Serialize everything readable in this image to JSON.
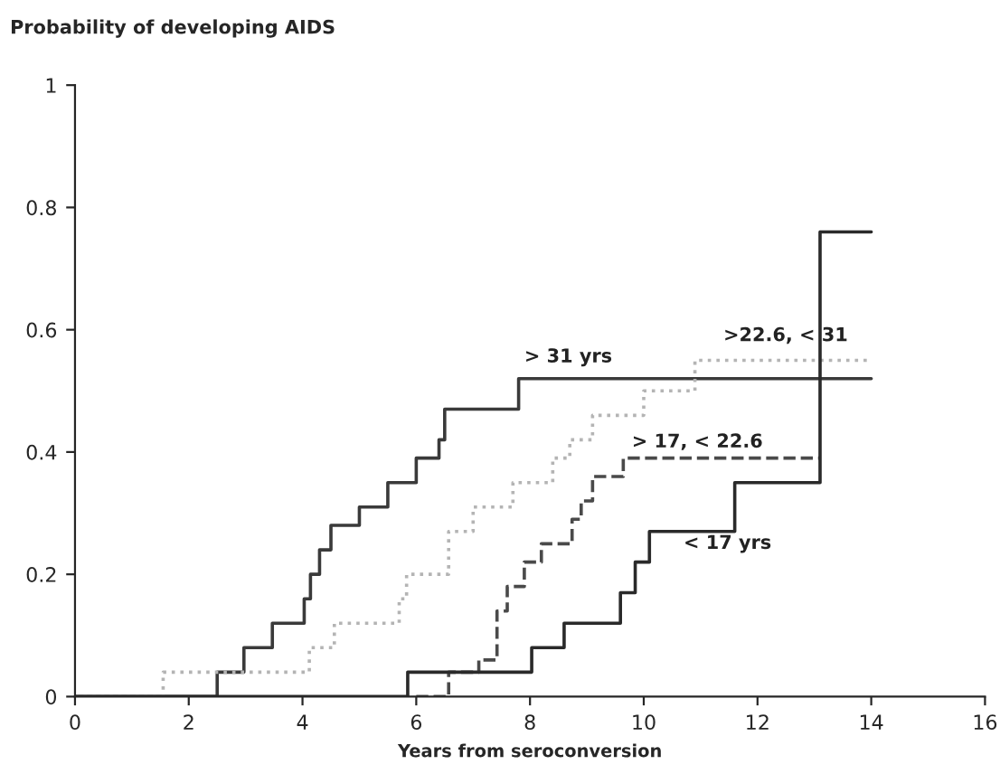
{
  "chart_data": {
    "type": "step",
    "title": "Probability of developing AIDS",
    "xlabel": "Years from seroconversion",
    "xlim": [
      0,
      16
    ],
    "ylim": [
      0,
      1
    ],
    "xticks": [
      0,
      2,
      4,
      6,
      8,
      10,
      12,
      14,
      16
    ],
    "yticks": [
      0,
      {
        "value": 0.2,
        "label": "0.2"
      },
      {
        "value": 0.4,
        "label": "0.4"
      },
      {
        "value": 0.6,
        "label": "0.6"
      },
      {
        "value": 0.8,
        "label": "0.8"
      },
      1
    ],
    "grid": false,
    "legend": false,
    "marker": "none",
    "series": [
      {
        "name": "> 31 yrs",
        "color": "#3a3a3a",
        "line_style": "solid",
        "x": [
          0,
          2.5,
          2.97,
          3.47,
          4.03,
          4.14,
          4.3,
          4.5,
          5.0,
          5.5,
          6.0,
          6.4,
          6.5,
          7.8,
          14
        ],
        "values": [
          0,
          0.04,
          0.08,
          0.12,
          0.16,
          0.2,
          0.24,
          0.28,
          0.31,
          0.35,
          0.39,
          0.42,
          0.47,
          0.52,
          0.52
        ]
      },
      {
        "name": ">22.6, < 31",
        "color": "#b4b4b4",
        "line_style": "dotted",
        "x": [
          0,
          1.55,
          4.12,
          4.56,
          5.7,
          5.83,
          6.57,
          7.0,
          7.7,
          8.4,
          8.7,
          9.1,
          10.0,
          10.9,
          14
        ],
        "values": [
          0,
          0.04,
          0.08,
          0.12,
          0.16,
          0.2,
          0.27,
          0.31,
          0.35,
          0.39,
          0.42,
          0.46,
          0.5,
          0.55,
          0.55
        ]
      },
      {
        "name": "> 17, < 22.6",
        "color": "#4a4a4a",
        "line_style": "dashed",
        "x": [
          6.0,
          6.57,
          7.1,
          7.42,
          7.6,
          7.9,
          8.2,
          8.74,
          8.9,
          9.1,
          9.64,
          13.1
        ],
        "values": [
          0,
          0.04,
          0.06,
          0.14,
          0.18,
          0.22,
          0.25,
          0.29,
          0.32,
          0.36,
          0.39,
          0.39
        ]
      },
      {
        "name": "< 17 yrs",
        "color": "#2a2a2a",
        "line_style": "solid",
        "x": [
          0,
          5.85,
          8.03,
          8.6,
          9.59,
          9.85,
          10.1,
          11.6,
          13.1,
          14
        ],
        "values": [
          0,
          0.04,
          0.08,
          0.12,
          0.17,
          0.22,
          0.27,
          0.35,
          0.76,
          0.76
        ]
      }
    ]
  }
}
